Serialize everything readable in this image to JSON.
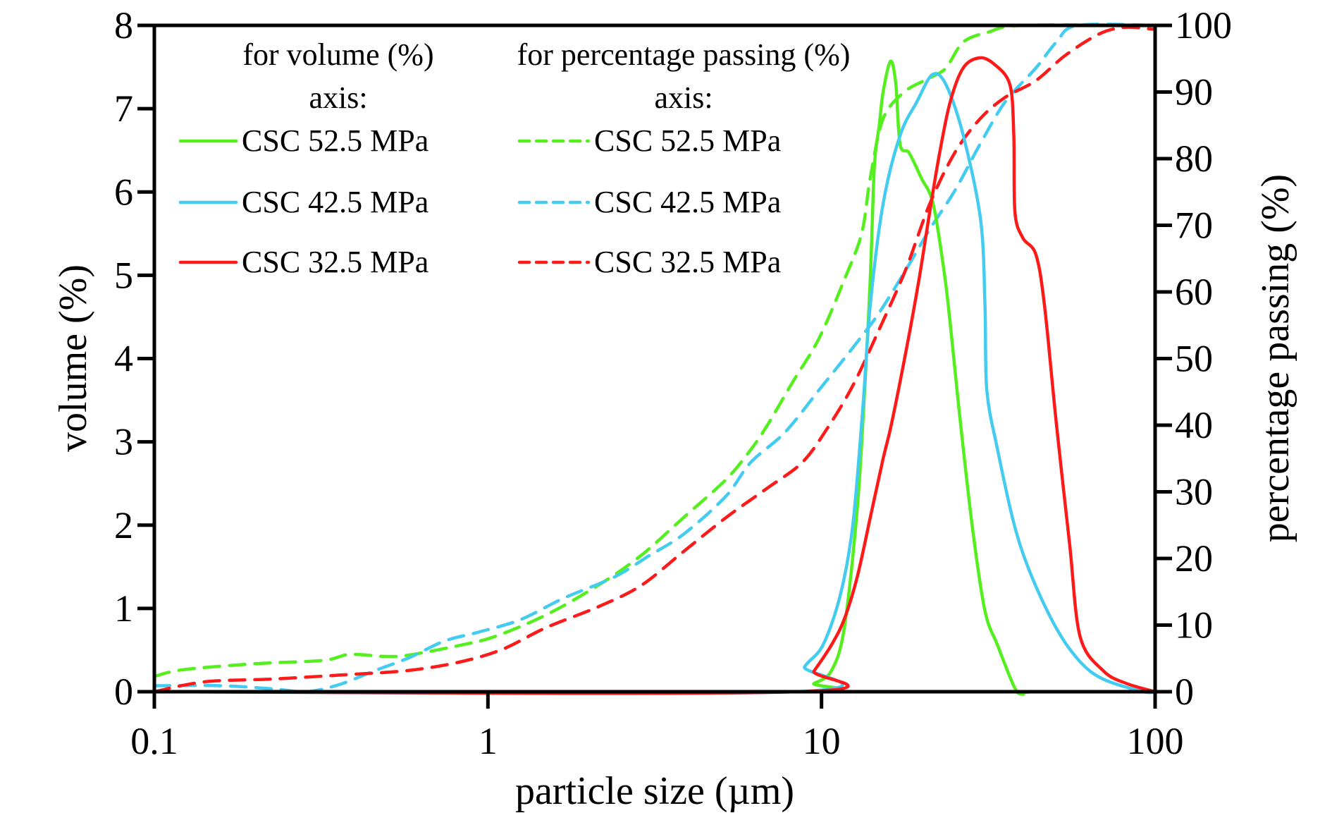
{
  "chart_data": {
    "type": "line",
    "title": "",
    "xlabel": "particle size (µm)",
    "ylabel": "volume (%)",
    "y2label": "percentage passing (%)",
    "xscale": "log",
    "xlim": [
      0.1,
      100
    ],
    "ylim": [
      0,
      8
    ],
    "y2lim": [
      0,
      100
    ],
    "grid": false,
    "x_ticks": [
      {
        "value": 0.1,
        "label": "0.1"
      },
      {
        "value": 1,
        "label": "1"
      },
      {
        "value": 10,
        "label": "10"
      },
      {
        "value": 100,
        "label": "100"
      }
    ],
    "y_ticks": [
      {
        "value": 0,
        "label": "0"
      },
      {
        "value": 1,
        "label": "1"
      },
      {
        "value": 2,
        "label": "2"
      },
      {
        "value": 3,
        "label": "3"
      },
      {
        "value": 4,
        "label": "4"
      },
      {
        "value": 5,
        "label": "5"
      },
      {
        "value": 6,
        "label": "6"
      },
      {
        "value": 7,
        "label": "7"
      },
      {
        "value": 8,
        "label": "8"
      }
    ],
    "y2_ticks": [
      {
        "value": 0,
        "label": "0"
      },
      {
        "value": 10,
        "label": "10"
      },
      {
        "value": 20,
        "label": "20"
      },
      {
        "value": 30,
        "label": "30"
      },
      {
        "value": 40,
        "label": "40"
      },
      {
        "value": 50,
        "label": "50"
      },
      {
        "value": 60,
        "label": "60"
      },
      {
        "value": 70,
        "label": "70"
      },
      {
        "value": 80,
        "label": "80"
      },
      {
        "value": 90,
        "label": "90"
      },
      {
        "value": 100,
        "label": "100"
      }
    ],
    "legend": {
      "placement": "top-left",
      "groups": [
        {
          "title_line1": "for volume (%)",
          "title_line2": "axis:",
          "style": "solid",
          "entries": [
            "CSC 52.5 MPa",
            "CSC 42.5 MPa",
            "CSC 32.5 MPa"
          ]
        },
        {
          "title_line1": "for percentage passing (%)",
          "title_line2": "axis:",
          "style": "dashed",
          "entries": [
            "CSC 52.5 MPa",
            "CSC 42.5 MPa",
            "CSC 32.5 MPa"
          ]
        }
      ]
    },
    "colors": {
      "CSC 52.5 MPa": "#55ee1e",
      "CSC 42.5 MPa": "#44ccf0",
      "CSC 32.5 MPa": "#ff1a1a"
    },
    "series": [
      {
        "name": "CSC 52.5 MPa",
        "axis": "volume",
        "style": "solid",
        "x": [
          0.1,
          8.1,
          9.5,
          10.7,
          11.7,
          12.8,
          13.5,
          14.0,
          14.4,
          14.9,
          15.3,
          16.1,
          16.7,
          17.2,
          18.3,
          19.9,
          21.6,
          23.3,
          24.3,
          25.8,
          28.3,
          30.9,
          33.7,
          37.9,
          40.1,
          43.9,
          100
        ],
        "y": [
          0,
          0,
          0.1,
          0.25,
          0.76,
          2.2,
          3.7,
          4.95,
          6.3,
          6.8,
          7.2,
          7.57,
          7.3,
          6.57,
          6.47,
          6.17,
          5.86,
          5.05,
          4.43,
          3.41,
          1.99,
          0.97,
          0.56,
          0.05,
          -0.03,
          0,
          0
        ]
      },
      {
        "name": "CSC 42.5 MPa",
        "axis": "volume",
        "style": "solid",
        "x": [
          0.1,
          8.3,
          8.9,
          10.1,
          11.4,
          12.4,
          13.3,
          14.0,
          15.3,
          17.2,
          19.3,
          21.5,
          23.6,
          26.6,
          30.0,
          30.9,
          31.3,
          33.7,
          37.9,
          42.7,
          50.6,
          59.6,
          70,
          92,
          100
        ],
        "y": [
          0,
          0,
          0.3,
          0.56,
          1.17,
          1.99,
          3.41,
          4.64,
          5.86,
          6.68,
          7.08,
          7.41,
          7.29,
          6.68,
          5.66,
          4.64,
          3.62,
          2.91,
          1.99,
          1.38,
          0.76,
          0.36,
          0.15,
          0,
          0
        ]
      },
      {
        "name": "CSC 32.5 MPa",
        "axis": "volume",
        "style": "solid",
        "x": [
          0.1,
          8.5,
          9.5,
          10.7,
          11.7,
          12.8,
          14.0,
          15.3,
          16.2,
          18.0,
          19.6,
          21.1,
          22.6,
          24.3,
          26.6,
          29.7,
          32.8,
          36.7,
          37.7,
          38.0,
          40.1,
          43.9,
          46.6,
          50.6,
          55.4,
          59.6,
          70,
          81.9,
          100
        ],
        "y": [
          0,
          0,
          0.25,
          0.56,
          0.87,
          1.38,
          2.09,
          2.8,
          3.21,
          4.13,
          4.95,
          5.76,
          6.47,
          7.08,
          7.49,
          7.61,
          7.54,
          7.29,
          6.68,
          5.76,
          5.45,
          5.25,
          4.64,
          3.21,
          1.78,
          0.66,
          0.25,
          0.1,
          0
        ]
      },
      {
        "name": "CSC 52.5 MPa",
        "axis": "percentage passing",
        "style": "dashed",
        "x": [
          0.1,
          0.122,
          0.2,
          0.32,
          0.385,
          0.49,
          0.58,
          0.83,
          1.05,
          1.49,
          2.13,
          2.87,
          3.85,
          5.16,
          6.13,
          6.9,
          8.2,
          9.8,
          11.7,
          13.2,
          14.0,
          15.3,
          17.8,
          21.1,
          23.6,
          26.6,
          31.7,
          40,
          100
        ],
        "y": [
          2.3,
          3.3,
          4.2,
          4.7,
          5.6,
          5.3,
          5.5,
          7.0,
          8.3,
          11.5,
          15.9,
          20.4,
          26.1,
          31.8,
          36.3,
          40.1,
          46.5,
          52.9,
          61.8,
          68.8,
          77.1,
          86.0,
          90.1,
          92.1,
          93.6,
          97.5,
          99.0,
          100,
          100
        ]
      },
      {
        "name": "CSC 42.5 MPa",
        "axis": "percentage passing",
        "style": "dashed",
        "x": [
          0.1,
          0.159,
          0.23,
          0.287,
          0.36,
          0.46,
          0.58,
          0.74,
          0.93,
          1.25,
          1.68,
          2.39,
          3.04,
          3.85,
          5.16,
          6.13,
          7.76,
          9.8,
          12.4,
          14.8,
          17.8,
          21.1,
          25.1,
          29.9,
          35.5,
          43.9,
          50.6,
          58.6,
          100
        ],
        "y": [
          0.9,
          0.9,
          0.4,
          0,
          1.1,
          3.2,
          5.1,
          7.6,
          8.9,
          10.8,
          14.0,
          17.2,
          20.4,
          23.6,
          29.3,
          34.4,
          38.9,
          45.2,
          51.6,
          56.7,
          63.1,
          69.4,
          75.2,
          82.2,
          88.5,
          93.6,
          97.5,
          100,
          100
        ]
      },
      {
        "name": "CSC 32.5 MPa",
        "axis": "percentage passing",
        "style": "dashed",
        "x": [
          0.1,
          0.142,
          0.226,
          0.36,
          0.58,
          0.83,
          1.11,
          1.49,
          2.13,
          2.87,
          3.85,
          5.16,
          6.9,
          8.75,
          10.4,
          12.4,
          14.8,
          17.8,
          21.1,
          25.1,
          29.9,
          35.5,
          43.9,
          53.8,
          67.9,
          81,
          100
        ],
        "y": [
          0,
          1.5,
          1.9,
          2.5,
          3.2,
          4.5,
          6.4,
          9.6,
          12.7,
          15.9,
          21.0,
          26.1,
          30.6,
          34.4,
          39.5,
          45.9,
          54.1,
          63.1,
          73.2,
          80.9,
          86.0,
          89.2,
          91.7,
          95.5,
          98.7,
          99.7,
          99.4
        ]
      }
    ]
  }
}
